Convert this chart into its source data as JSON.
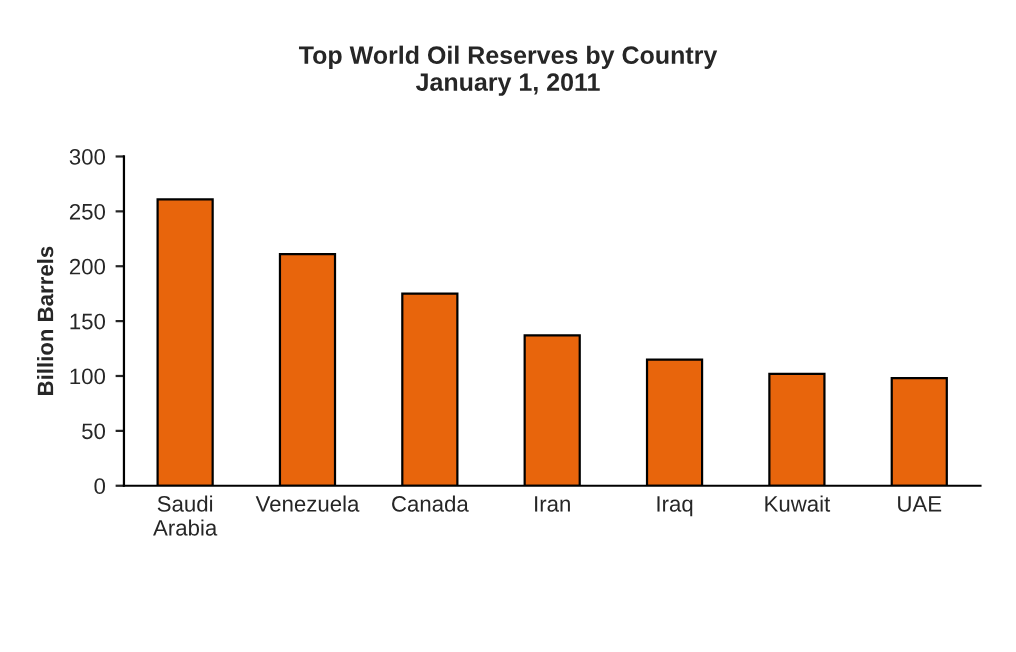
{
  "chart_data": {
    "type": "bar",
    "title": "Top World Oil Reserves by Country\nJanuary 1, 2011",
    "ylabel": "Billion Barrels",
    "categories": [
      "Saudi\nArabia",
      "Venezuela",
      "Canada",
      "Iran",
      "Iraq",
      "Kuwait",
      "UAE"
    ],
    "values": [
      261,
      211,
      175,
      137,
      115,
      102,
      98
    ],
    "color": "#e8650c",
    "ylim": [
      0,
      300
    ],
    "yticks": [
      0,
      50,
      100,
      150,
      200,
      250,
      300
    ],
    "grid": false
  }
}
